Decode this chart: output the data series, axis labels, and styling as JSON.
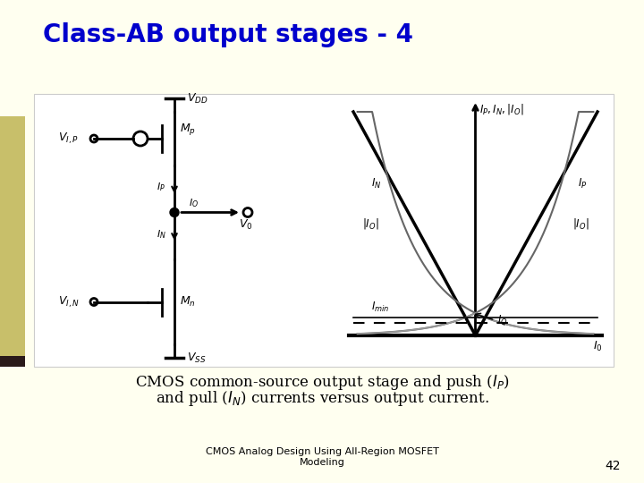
{
  "title": "Class-AB output stages - 4",
  "title_color": "#0000CC",
  "title_fontsize": 20,
  "bg_color": "#FFFFF0",
  "slide_bg": "#FFFFF0",
  "footer_text": "CMOS Analog Design Using All-Region MOSFET\nModeling",
  "footer_page": "42",
  "footer_fontsize": 8,
  "caption_fontsize": 12
}
